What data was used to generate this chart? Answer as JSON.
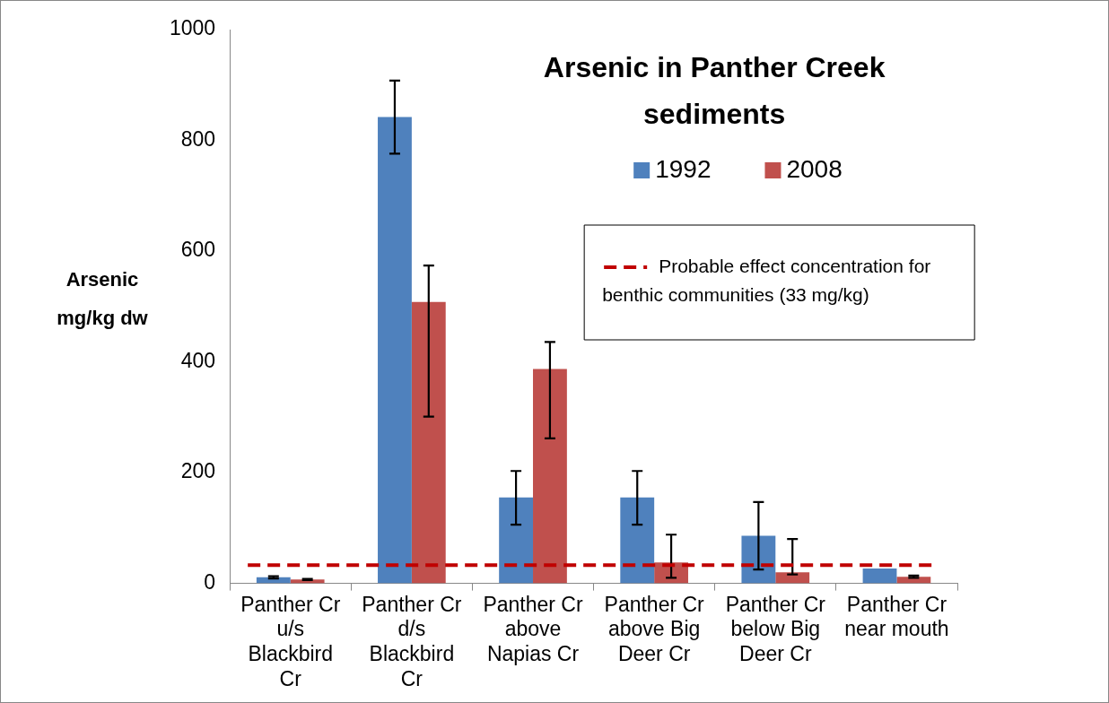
{
  "chart_data": {
    "type": "bar",
    "title": "Arsenic in Panther Creek sediments",
    "ylabel": "Arsenic mg/kg dw",
    "categories": [
      "Panther Cr u/s Blackbird Cr",
      "Panther Cr d/s Blackbird Cr",
      "Panther Cr above Napias Cr",
      "Panther Cr above Big Deer Cr",
      "Panther Cr below Big Deer Cr",
      "Panther Cr near mouth"
    ],
    "series": [
      {
        "name": "1992",
        "color": "#4f81bd",
        "values": [
          11,
          842,
          155,
          155,
          86,
          27
        ],
        "errors": [
          [
            9,
            13
          ],
          [
            776,
            908
          ],
          [
            106,
            203
          ],
          [
            106,
            203
          ],
          [
            25,
            147
          ],
          null
        ]
      },
      {
        "name": "2008",
        "color": "#c0504d",
        "values": [
          7,
          508,
          387,
          38,
          20,
          12
        ],
        "errors": [
          [
            6,
            8
          ],
          [
            301,
            574
          ],
          [
            262,
            436
          ],
          [
            10,
            88
          ],
          [
            16,
            80
          ],
          [
            10,
            14
          ]
        ]
      }
    ],
    "ylim": [
      0,
      1000
    ],
    "yticks": [
      0,
      200,
      400,
      600,
      800,
      1000
    ],
    "grid": false,
    "legend": "top right",
    "ref_lines": [
      {
        "axis": "y",
        "value": 33,
        "label": "Probable effect concentration for benthic communities (33 mg/kg)",
        "color": "#c00000",
        "line_style": "dashed"
      }
    ]
  }
}
